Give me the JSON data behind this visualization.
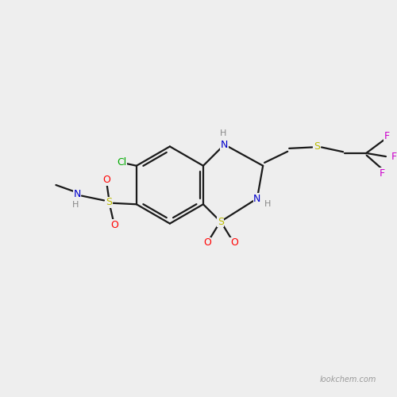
{
  "bg_color": "#eeeeee",
  "bond_color": "#1a1a1a",
  "atom_colors": {
    "C": "#1a1a1a",
    "N": "#0000cc",
    "S": "#bbbb00",
    "O": "#ff0000",
    "F": "#cc00cc",
    "Cl": "#00aa00",
    "H": "#888888"
  },
  "watermark": "lookchem.com",
  "lw": 1.6,
  "fontsize": 9
}
